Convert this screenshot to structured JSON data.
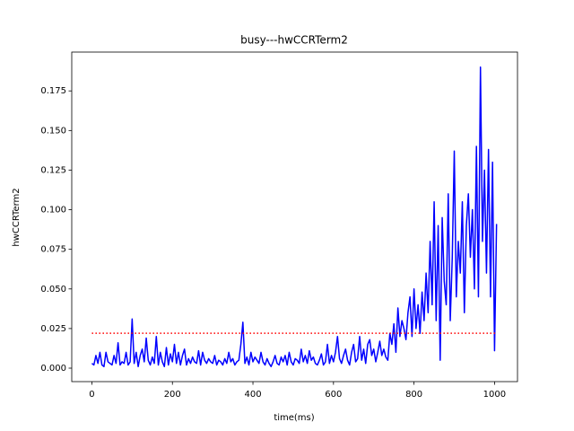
{
  "chart_data": {
    "type": "line",
    "title": "busy---hwCCRTerm2",
    "x_label": "time(ms)",
    "y_label": "hwCCRTerm2",
    "x": [
      0,
      5,
      10,
      15,
      20,
      25,
      30,
      35,
      40,
      45,
      50,
      55,
      60,
      65,
      70,
      75,
      80,
      85,
      90,
      95,
      100,
      105,
      110,
      115,
      120,
      125,
      130,
      135,
      140,
      145,
      150,
      155,
      160,
      165,
      170,
      175,
      180,
      185,
      190,
      195,
      200,
      205,
      210,
      215,
      220,
      225,
      230,
      235,
      240,
      245,
      250,
      255,
      260,
      265,
      270,
      275,
      280,
      285,
      290,
      295,
      300,
      305,
      310,
      315,
      320,
      325,
      330,
      335,
      340,
      345,
      350,
      355,
      360,
      365,
      370,
      375,
      380,
      385,
      390,
      395,
      400,
      405,
      410,
      415,
      420,
      425,
      430,
      435,
      440,
      445,
      450,
      455,
      460,
      465,
      470,
      475,
      480,
      485,
      490,
      495,
      500,
      505,
      510,
      515,
      520,
      525,
      530,
      535,
      540,
      545,
      550,
      555,
      560,
      565,
      570,
      575,
      580,
      585,
      590,
      595,
      600,
      605,
      610,
      615,
      620,
      625,
      630,
      635,
      640,
      645,
      650,
      655,
      660,
      665,
      670,
      675,
      680,
      685,
      690,
      695,
      700,
      705,
      710,
      715,
      720,
      725,
      730,
      735,
      740,
      745,
      750,
      755,
      760,
      765,
      770,
      775,
      780,
      785,
      790,
      795,
      800,
      805,
      810,
      815,
      820,
      825,
      830,
      835,
      840,
      845,
      850,
      855,
      860,
      865,
      870,
      875,
      880,
      885,
      890,
      895,
      900,
      905,
      910,
      915,
      920,
      925,
      930,
      935,
      940,
      945,
      950,
      955,
      960,
      965,
      970,
      975,
      980,
      985,
      990,
      995,
      1000,
      1005
    ],
    "series": [
      {
        "color": "#0000ff",
        "values": [
          0.003,
          0.002,
          0.008,
          0.003,
          0.01,
          0.002,
          0.001,
          0.01,
          0.004,
          0.003,
          0.002,
          0.008,
          0.003,
          0.016,
          0.002,
          0.004,
          0.003,
          0.01,
          0.002,
          0.004,
          0.031,
          0.003,
          0.01,
          0.001,
          0.008,
          0.012,
          0.004,
          0.019,
          0.005,
          0.002,
          0.007,
          0.003,
          0.02,
          0.002,
          0.01,
          0.004,
          0.001,
          0.013,
          0.002,
          0.009,
          0.004,
          0.015,
          0.003,
          0.01,
          0.002,
          0.008,
          0.012,
          0.002,
          0.006,
          0.003,
          0.007,
          0.004,
          0.003,
          0.011,
          0.002,
          0.01,
          0.005,
          0.003,
          0.006,
          0.004,
          0.003,
          0.008,
          0.002,
          0.005,
          0.004,
          0.002,
          0.006,
          0.003,
          0.01,
          0.004,
          0.006,
          0.002,
          0.004,
          0.005,
          0.015,
          0.029,
          0.003,
          0.007,
          0.002,
          0.01,
          0.004,
          0.007,
          0.005,
          0.003,
          0.01,
          0.004,
          0.002,
          0.006,
          0.003,
          0.001,
          0.004,
          0.008,
          0.003,
          0.002,
          0.007,
          0.004,
          0.008,
          0.002,
          0.01,
          0.004,
          0.002,
          0.006,
          0.005,
          0.003,
          0.012,
          0.004,
          0.008,
          0.003,
          0.011,
          0.005,
          0.007,
          0.003,
          0.002,
          0.005,
          0.009,
          0.002,
          0.004,
          0.015,
          0.003,
          0.008,
          0.004,
          0.01,
          0.02,
          0.006,
          0.003,
          0.008,
          0.012,
          0.005,
          0.002,
          0.01,
          0.015,
          0.004,
          0.006,
          0.02,
          0.005,
          0.012,
          0.003,
          0.015,
          0.018,
          0.008,
          0.012,
          0.004,
          0.01,
          0.017,
          0.008,
          0.012,
          0.007,
          0.005,
          0.022,
          0.015,
          0.028,
          0.01,
          0.038,
          0.02,
          0.03,
          0.025,
          0.018,
          0.035,
          0.045,
          0.02,
          0.05,
          0.025,
          0.04,
          0.022,
          0.048,
          0.03,
          0.06,
          0.035,
          0.08,
          0.04,
          0.105,
          0.03,
          0.09,
          0.005,
          0.095,
          0.055,
          0.04,
          0.11,
          0.03,
          0.07,
          0.137,
          0.045,
          0.08,
          0.06,
          0.105,
          0.035,
          0.09,
          0.11,
          0.07,
          0.1,
          0.05,
          0.14,
          0.045,
          0.19,
          0.08,
          0.125,
          0.06,
          0.138,
          0.045,
          0.13,
          0.011,
          0.091
        ]
      }
    ],
    "reference_line": {
      "value": 0.022,
      "color": "#ff0000",
      "style": "dotted"
    },
    "xlim": [
      -50,
      1057
    ],
    "ylim": [
      -0.0085,
      0.1995
    ],
    "xticks": [
      0,
      200,
      400,
      600,
      800,
      1000
    ],
    "yticks": [
      {
        "value": 0,
        "label": "0.000"
      },
      {
        "value": 0.025,
        "label": "0.025"
      },
      {
        "value": 0.05,
        "label": "0.050"
      },
      {
        "value": 0.075,
        "label": "0.075"
      },
      {
        "value": 0.1,
        "label": "0.100"
      },
      {
        "value": 0.125,
        "label": "0.125"
      },
      {
        "value": 0.15,
        "label": "0.150"
      },
      {
        "value": 0.175,
        "label": "0.175"
      }
    ]
  }
}
